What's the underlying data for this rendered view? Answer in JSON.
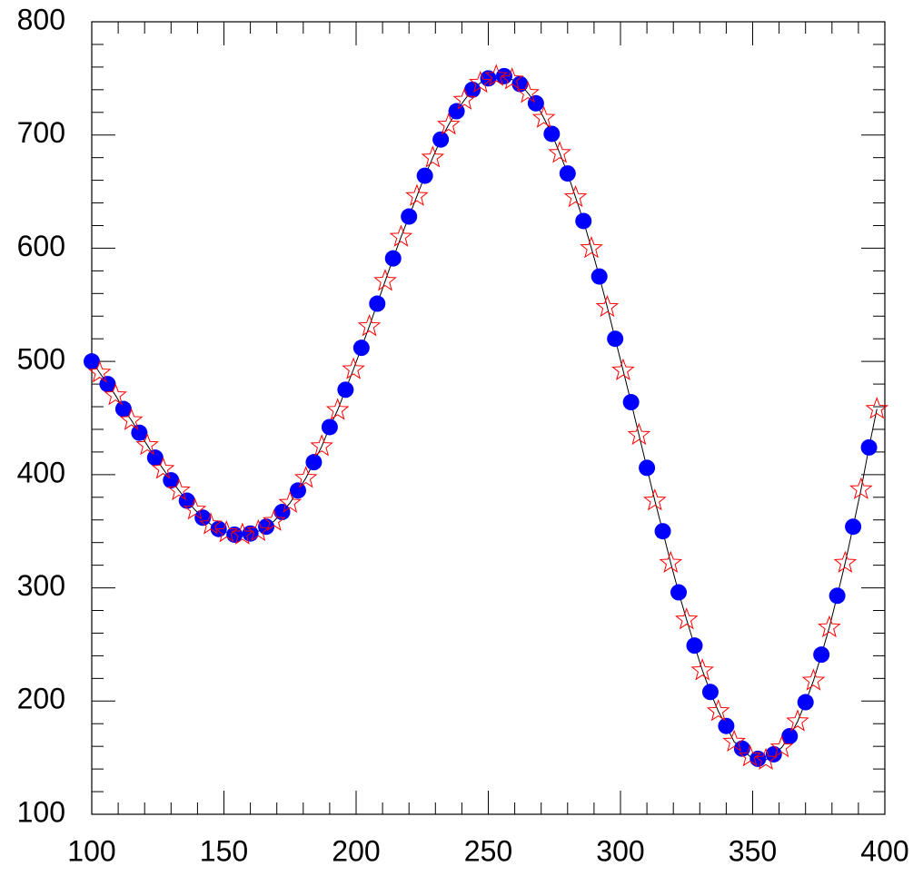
{
  "chart_data": {
    "type": "scatter",
    "xlim": [
      100,
      400
    ],
    "ylim": [
      100,
      800
    ],
    "xticks": [
      100,
      150,
      200,
      250,
      300,
      350,
      400
    ],
    "yticks": [
      100,
      200,
      300,
      400,
      500,
      600,
      700,
      800
    ],
    "line_color": "#000000",
    "series": [
      {
        "marker": "circle",
        "color": "#0000ff",
        "x": [
          100,
          106,
          112,
          118,
          124,
          130,
          136,
          142,
          148,
          154,
          160,
          166,
          172,
          178,
          184,
          190,
          196,
          202,
          208,
          214,
          220,
          226,
          232,
          238,
          244,
          250,
          256,
          262,
          268,
          274,
          280,
          286,
          292,
          298,
          304,
          310,
          316,
          322,
          328,
          334,
          340,
          346,
          352,
          358,
          364,
          370,
          376,
          382,
          388,
          394
        ],
        "values": [
          500,
          480,
          458,
          437,
          415,
          395,
          377,
          362,
          352,
          347,
          348,
          354,
          367,
          386,
          411,
          442,
          475,
          512,
          551,
          591,
          628,
          664,
          696,
          721,
          740,
          750,
          752,
          745,
          728,
          701,
          666,
          624,
          575,
          520,
          464,
          406,
          350,
          296,
          249,
          208,
          178,
          158,
          149,
          153,
          169,
          199,
          241,
          293,
          354,
          424
        ]
      },
      {
        "marker": "star",
        "color": "#ff0000",
        "x": [
          103,
          109,
          115,
          121,
          127,
          133,
          139,
          145,
          151,
          157,
          163,
          169,
          175,
          181,
          187,
          193,
          199,
          205,
          211,
          217,
          223,
          229,
          235,
          241,
          247,
          253,
          259,
          265,
          271,
          277,
          283,
          289,
          295,
          301,
          307,
          313,
          319,
          325,
          331,
          337,
          343,
          349,
          355,
          361,
          367,
          373,
          379,
          385,
          391,
          397
        ],
        "values": [
          490,
          470,
          448,
          426,
          405,
          386,
          369,
          356,
          349,
          347,
          350,
          359,
          375,
          397,
          425,
          457,
          493,
          531,
          571,
          610,
          646,
          680,
          709,
          731,
          746,
          752,
          749,
          737,
          715,
          684,
          645,
          600,
          548,
          492,
          435,
          377,
          322,
          272,
          227,
          191,
          164,
          151,
          148,
          159,
          182,
          218,
          265,
          322,
          387,
          458
        ]
      }
    ]
  }
}
